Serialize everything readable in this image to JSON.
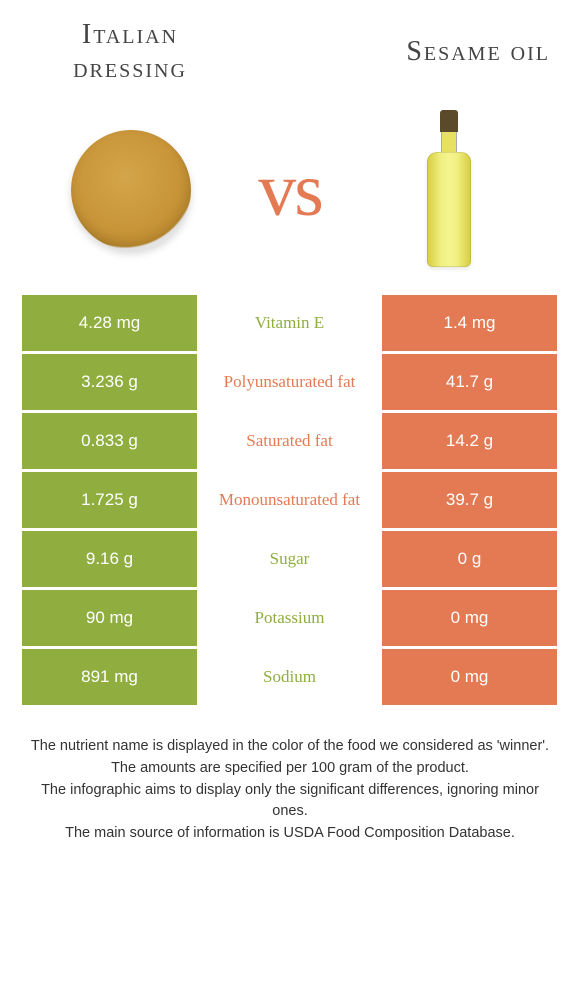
{
  "colors": {
    "left": "#8fae3f",
    "right": "#e47a53",
    "vs": "#e47a53"
  },
  "titles": {
    "left": "Italian dressing",
    "right": "Sesame oil"
  },
  "vs": "vs",
  "rows": [
    {
      "left": "4.28 mg",
      "label": "Vitamin E",
      "right": "1.4 mg",
      "winner": "left"
    },
    {
      "left": "3.236 g",
      "label": "Polyunsaturated fat",
      "right": "41.7 g",
      "winner": "right"
    },
    {
      "left": "0.833 g",
      "label": "Saturated fat",
      "right": "14.2 g",
      "winner": "right"
    },
    {
      "left": "1.725 g",
      "label": "Monounsaturated fat",
      "right": "39.7 g",
      "winner": "right"
    },
    {
      "left": "9.16 g",
      "label": "Sugar",
      "right": "0 g",
      "winner": "left"
    },
    {
      "left": "90 mg",
      "label": "Potassium",
      "right": "0 mg",
      "winner": "left"
    },
    {
      "left": "891 mg",
      "label": "Sodium",
      "right": "0 mg",
      "winner": "left"
    }
  ],
  "footer": {
    "line1": "The nutrient name is displayed in the color of the food we considered as 'winner'.",
    "line2": "The amounts are specified per 100 gram of the product.",
    "line3": "The infographic aims to display only the significant differences, ignoring minor ones.",
    "line4": "The main source of information is USDA Food Composition Database."
  }
}
